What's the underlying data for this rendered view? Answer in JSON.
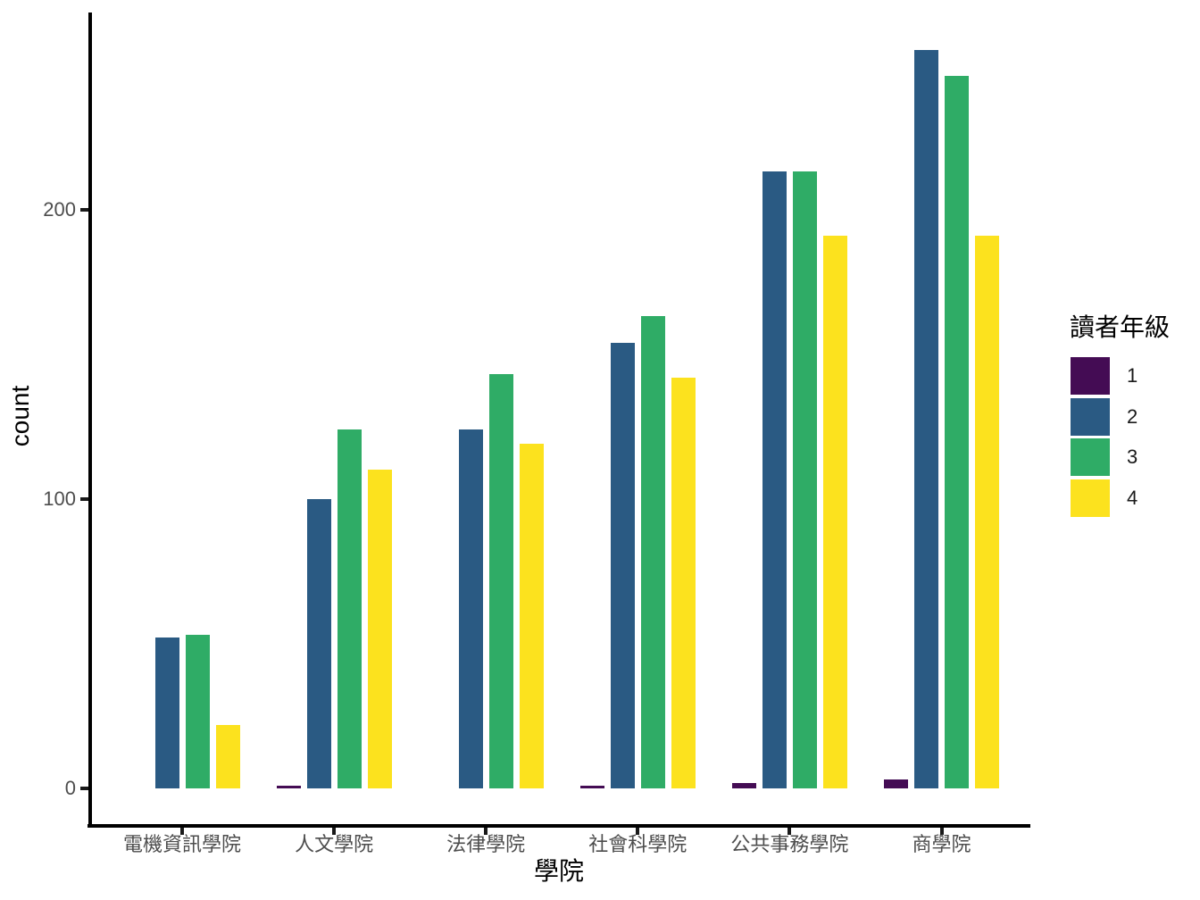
{
  "chart_data": {
    "type": "bar",
    "bar_mode": "grouped",
    "title": "",
    "xlabel": "學院",
    "ylabel": "count",
    "categories": [
      "電機資訊學院",
      "人文學院",
      "法律學院",
      "社會科學院",
      "公共事務學院",
      "商學院"
    ],
    "series": [
      {
        "name": "1",
        "color": "#440C54",
        "values": [
          0,
          1,
          0,
          1,
          2,
          3
        ]
      },
      {
        "name": "2",
        "color": "#2A5A83",
        "values": [
          52,
          100,
          124,
          154,
          213,
          255
        ]
      },
      {
        "name": "3",
        "color": "#2FAC66",
        "values": [
          53,
          124,
          143,
          163,
          213,
          246
        ]
      },
      {
        "name": "4",
        "color": "#FCE21E",
        "values": [
          22,
          110,
          119,
          142,
          191,
          191
        ]
      }
    ],
    "legend": {
      "title": "讀者年級",
      "position": "right",
      "labels": [
        "1",
        "2",
        "3",
        "4"
      ]
    },
    "y_ticks": [
      "0",
      "100",
      "200"
    ],
    "y_tick_values": [
      0,
      100,
      200
    ],
    "ylim": [
      0,
      268
    ],
    "grid": false,
    "style": {
      "axis_line_color": "#000000",
      "tick_label_color": "#4d4d4d",
      "background": "#ffffff"
    }
  }
}
